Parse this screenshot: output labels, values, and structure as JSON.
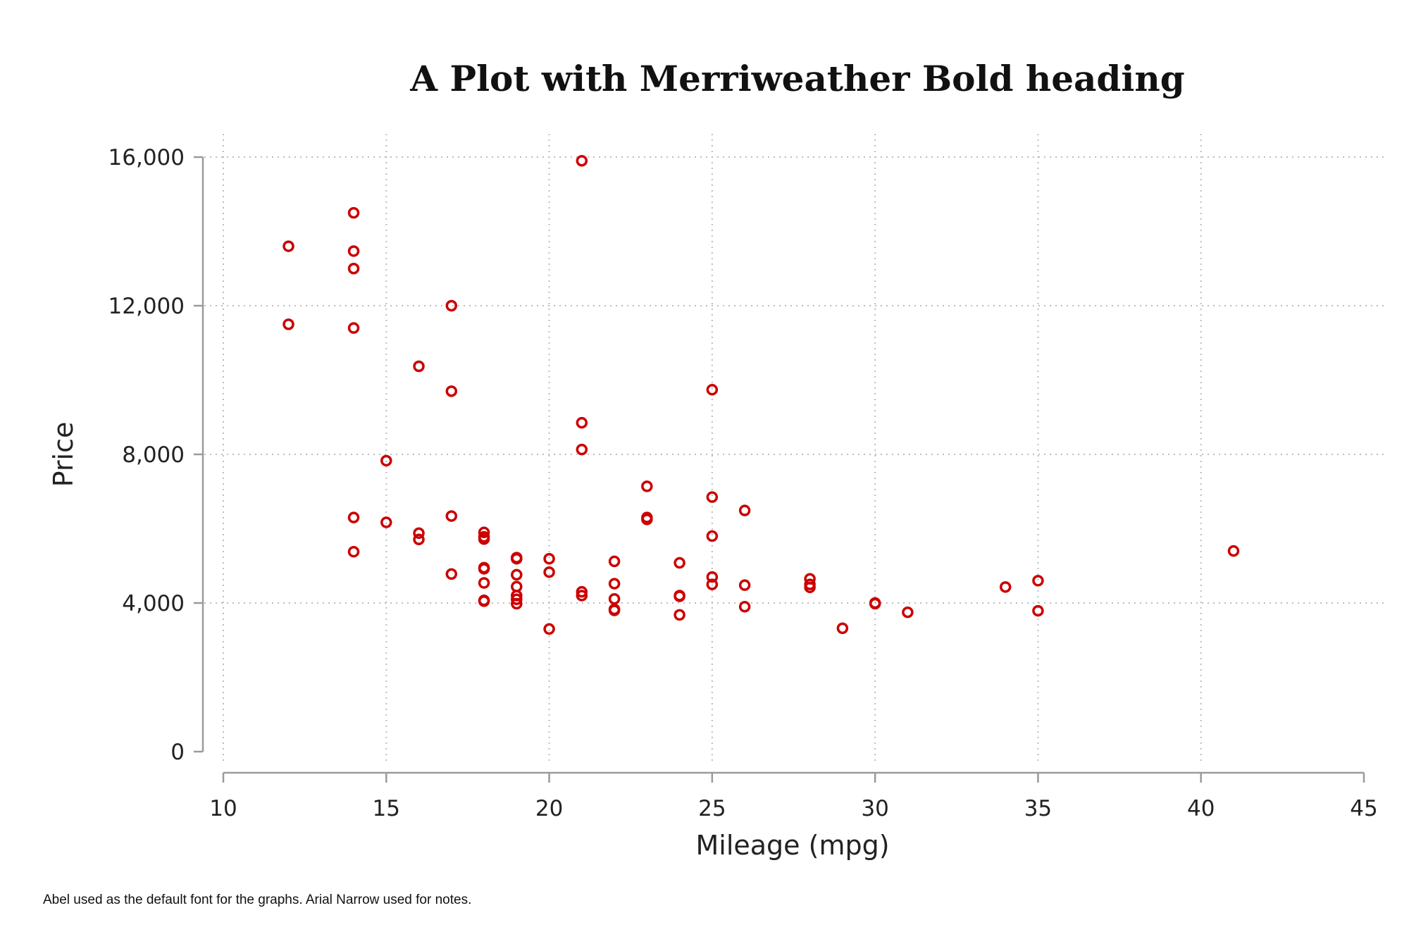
{
  "chart_data": {
    "type": "scatter",
    "title": "A Plot with Merriweather Bold heading",
    "xlabel": "Mileage (mpg)",
    "ylabel": "Price",
    "note": "Abel used as the default font for the graphs. Arial Narrow used for notes.",
    "xlim": [
      10,
      45
    ],
    "ylim": [
      0,
      16000
    ],
    "x_ticks": [
      10,
      15,
      20,
      25,
      30,
      35,
      40,
      45
    ],
    "x_tick_labels": [
      "10",
      "15",
      "20",
      "25",
      "30",
      "35",
      "40",
      "45"
    ],
    "y_ticks": [
      0,
      4000,
      8000,
      12000,
      16000
    ],
    "y_tick_labels": [
      "0",
      "4,000",
      "8,000",
      "12,000",
      "16,000"
    ],
    "grid": true,
    "marker": "hollow-circle",
    "marker_color": "#cc0000",
    "points": [
      [
        12,
        13600
      ],
      [
        12,
        11500
      ],
      [
        14,
        14500
      ],
      [
        14,
        13470
      ],
      [
        14,
        13000
      ],
      [
        14,
        11400
      ],
      [
        14,
        6300
      ],
      [
        14,
        5380
      ],
      [
        15,
        7830
      ],
      [
        15,
        6170
      ],
      [
        16,
        10370
      ],
      [
        16,
        5880
      ],
      [
        16,
        5710
      ],
      [
        17,
        12000
      ],
      [
        17,
        9700
      ],
      [
        17,
        6340
      ],
      [
        17,
        4780
      ],
      [
        18,
        5900
      ],
      [
        18,
        5780
      ],
      [
        18,
        5720
      ],
      [
        18,
        4950
      ],
      [
        18,
        4920
      ],
      [
        18,
        4540
      ],
      [
        18,
        4070
      ],
      [
        18,
        4050
      ],
      [
        19,
        5220
      ],
      [
        19,
        5190
      ],
      [
        19,
        4760
      ],
      [
        19,
        4440
      ],
      [
        19,
        4200
      ],
      [
        19,
        4100
      ],
      [
        19,
        3980
      ],
      [
        20,
        5190
      ],
      [
        20,
        4830
      ],
      [
        20,
        3300
      ],
      [
        21,
        15900
      ],
      [
        21,
        8850
      ],
      [
        21,
        8130
      ],
      [
        21,
        4300
      ],
      [
        21,
        4200
      ],
      [
        22,
        5120
      ],
      [
        22,
        4520
      ],
      [
        22,
        4110
      ],
      [
        22,
        3830
      ],
      [
        22,
        3800
      ],
      [
        23,
        7140
      ],
      [
        23,
        6300
      ],
      [
        23,
        6250
      ],
      [
        24,
        5080
      ],
      [
        24,
        4200
      ],
      [
        24,
        4180
      ],
      [
        24,
        3680
      ],
      [
        25,
        9740
      ],
      [
        25,
        6850
      ],
      [
        25,
        5800
      ],
      [
        25,
        4700
      ],
      [
        25,
        4500
      ],
      [
        26,
        6490
      ],
      [
        26,
        4480
      ],
      [
        26,
        3900
      ],
      [
        28,
        4650
      ],
      [
        28,
        4500
      ],
      [
        28,
        4420
      ],
      [
        29,
        3320
      ],
      [
        30,
        4000
      ],
      [
        30,
        3980
      ],
      [
        31,
        3750
      ],
      [
        34,
        4430
      ],
      [
        35,
        4600
      ],
      [
        35,
        3790
      ],
      [
        41,
        5400
      ]
    ]
  }
}
